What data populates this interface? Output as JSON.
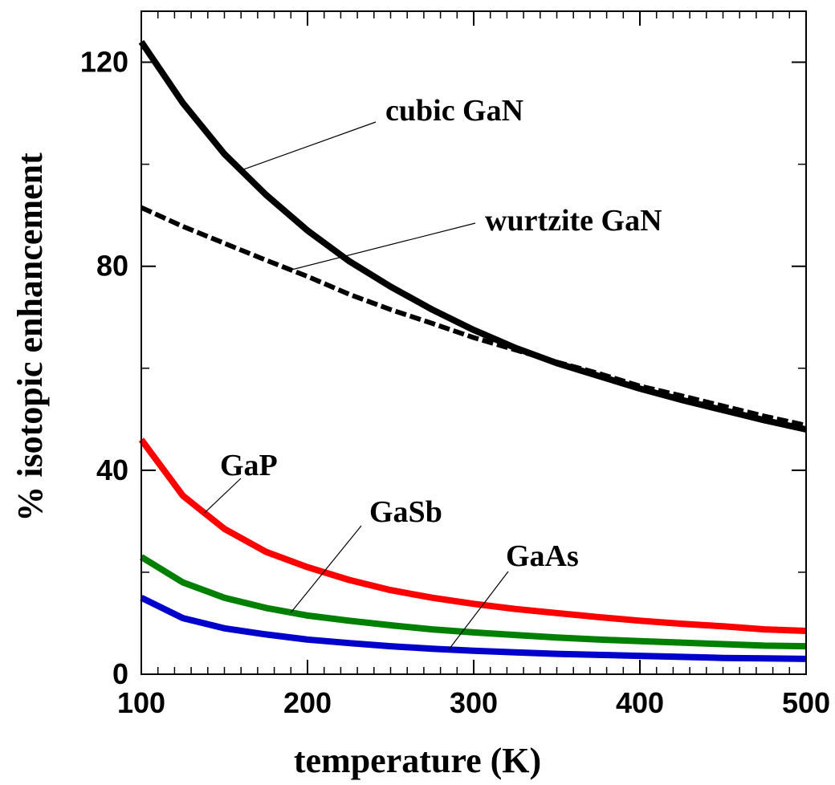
{
  "chart_data": {
    "type": "line",
    "xlabel": "temperature (K)",
    "ylabel": "% isotopic enhancement",
    "xlim": [
      100,
      500
    ],
    "ylim": [
      0,
      130
    ],
    "x_ticks": [
      100,
      200,
      300,
      400,
      500
    ],
    "y_ticks": [
      0,
      40,
      80,
      120
    ],
    "x_tick_labels": [
      "100",
      "200",
      "300",
      "400",
      "500"
    ],
    "y_tick_labels": [
      "0",
      "40",
      "80",
      "120"
    ],
    "grid": false,
    "x": [
      100,
      125,
      150,
      175,
      200,
      225,
      250,
      275,
      300,
      325,
      350,
      375,
      400,
      425,
      450,
      475,
      500
    ],
    "series": [
      {
        "name": "cubic GaN",
        "color": "#000000",
        "style": "solid",
        "values": [
          124,
          112,
          102,
          94,
          87,
          81,
          76,
          71.5,
          67.5,
          64,
          61,
          58.5,
          56,
          53.8,
          51.8,
          49.8,
          48
        ]
      },
      {
        "name": "wurtzite GaN",
        "color": "#000000",
        "style": "dashed",
        "values": [
          91.5,
          87.8,
          84.5,
          81.2,
          78,
          74.5,
          71.5,
          68.8,
          66,
          63.6,
          61.2,
          59,
          56.5,
          54.6,
          52.6,
          50.6,
          48.8
        ]
      },
      {
        "name": "GaP",
        "color": "#ff0000",
        "style": "solid",
        "values": [
          46,
          35,
          28.5,
          24,
          21,
          18.5,
          16.5,
          15,
          13.8,
          12.8,
          12,
          11.2,
          10.5,
          9.9,
          9.4,
          8.8,
          8.5
        ]
      },
      {
        "name": "GaSb",
        "color": "#008000",
        "style": "solid",
        "values": [
          23,
          18,
          15,
          13,
          11.5,
          10.5,
          9.6,
          8.8,
          8.2,
          7.7,
          7.2,
          6.8,
          6.5,
          6.2,
          5.9,
          5.6,
          5.5
        ]
      },
      {
        "name": "GaAs",
        "color": "#0000cc",
        "style": "solid",
        "values": [
          15,
          11,
          9,
          7.8,
          6.8,
          6.1,
          5.5,
          5.0,
          4.6,
          4.3,
          4.0,
          3.8,
          3.6,
          3.4,
          3.2,
          3.1,
          3.0
        ]
      }
    ],
    "annotations": [
      {
        "text": "cubic GaN",
        "target_series": "cubic GaN"
      },
      {
        "text": "wurtzite GaN",
        "target_series": "wurtzite GaN"
      },
      {
        "text": "GaP",
        "target_series": "GaP"
      },
      {
        "text": "GaSb",
        "target_series": "GaSb"
      },
      {
        "text": "GaAs",
        "target_series": "GaAs"
      }
    ]
  }
}
